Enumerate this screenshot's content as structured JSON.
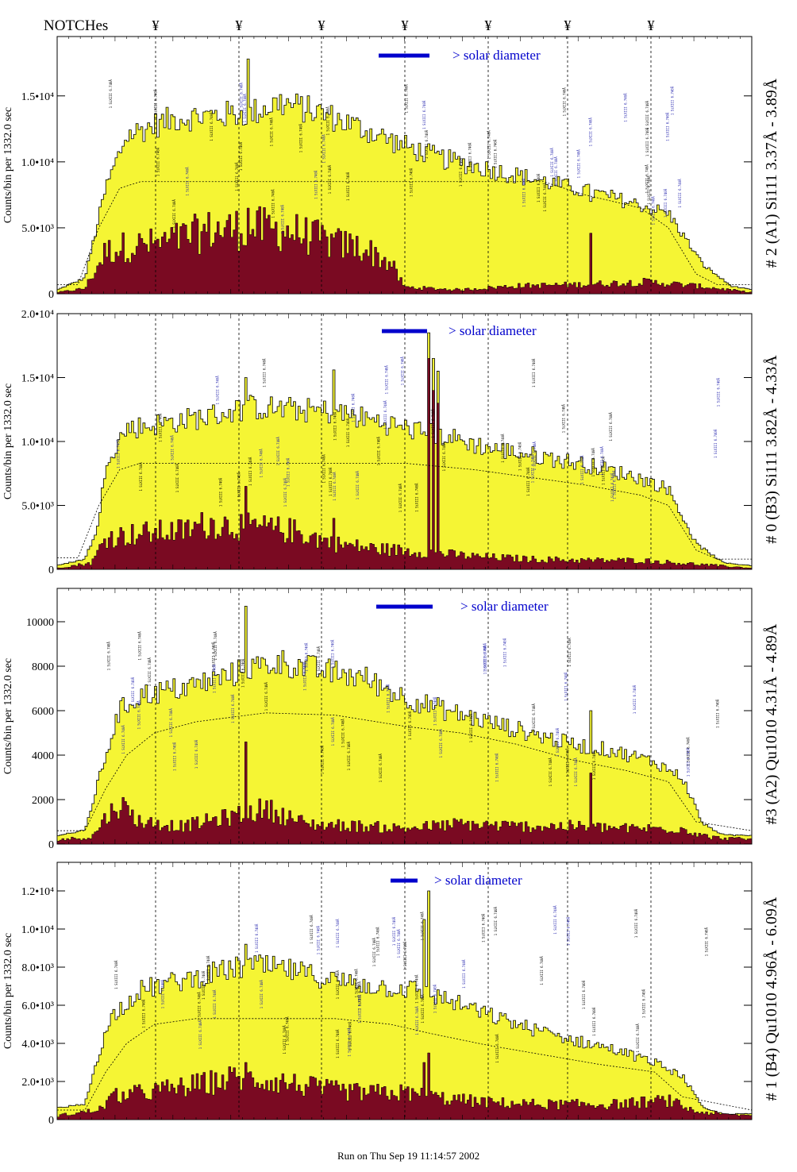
{
  "header": {
    "notches_label": "NOTCHes",
    "notch_symbol": "¥"
  },
  "footer": {
    "run_text": "Run on Thu Sep 19 11:14:57 2002"
  },
  "colors": {
    "total": "#f5f534",
    "background": "#7a0a22",
    "solar_bar": "#0000cc",
    "annotation_black": "#000000",
    "annotation_blue": "#1a1aaa"
  },
  "chart_data": [
    {
      "type": "bar",
      "ylabel": "Counts/bin per   1332.0 sec",
      "side_label": "# 2 (A1) Si111  3.37Å - 3.89Å",
      "ylim": [
        0,
        19500
      ],
      "yticks": [
        0,
        5000,
        10000,
        15000
      ],
      "ytick_labels": [
        "0",
        "5.0•10³",
        "1.0•10⁴",
        "1.5•10⁴"
      ],
      "solar_diameter_label": "> solar diameter",
      "total_profile": [
        [
          0,
          300
        ],
        [
          4,
          1200
        ],
        [
          7,
          8000
        ],
        [
          10,
          12000
        ],
        [
          13,
          12600
        ],
        [
          17,
          13300
        ],
        [
          22,
          13500
        ],
        [
          28,
          13700
        ],
        [
          32,
          14500
        ],
        [
          38,
          13700
        ],
        [
          45,
          12300
        ],
        [
          50,
          11200
        ],
        [
          55,
          10300
        ],
        [
          60,
          9700
        ],
        [
          66,
          9000
        ],
        [
          72,
          8300
        ],
        [
          80,
          7300
        ],
        [
          88,
          6100
        ],
        [
          93,
          2200
        ],
        [
          97,
          600
        ],
        [
          100,
          300
        ]
      ],
      "background_profile": [
        [
          0,
          100
        ],
        [
          4,
          400
        ],
        [
          7,
          3200
        ],
        [
          10,
          3600
        ],
        [
          15,
          3800
        ],
        [
          22,
          4800
        ],
        [
          28,
          5000
        ],
        [
          34,
          4700
        ],
        [
          40,
          3800
        ],
        [
          44,
          3500
        ],
        [
          48,
          2300
        ],
        [
          50,
          500
        ],
        [
          58,
          300
        ],
        [
          66,
          600
        ],
        [
          75,
          700
        ],
        [
          85,
          900
        ],
        [
          92,
          600
        ],
        [
          100,
          100
        ]
      ],
      "model_profile": [
        [
          0,
          700
        ],
        [
          3,
          700
        ],
        [
          6,
          5000
        ],
        [
          9,
          8000
        ],
        [
          12,
          8500
        ],
        [
          70,
          8500
        ],
        [
          76,
          7500
        ],
        [
          84,
          6500
        ],
        [
          88,
          5000
        ],
        [
          92,
          1500
        ],
        [
          95,
          700
        ],
        [
          100,
          700
        ]
      ],
      "spikes": [
        {
          "x": 27.2,
          "total": 17800,
          "background": 6500
        },
        {
          "x": 76.8,
          "total": 7000,
          "background": 4600
        }
      ]
    },
    {
      "type": "bar",
      "ylabel": "Counts/bin per   1332.0 sec",
      "side_label": "# 0 (B3) Si111  3.82Å - 4.33Å",
      "ylim": [
        0,
        20000
      ],
      "yticks": [
        0,
        5000,
        10000,
        15000,
        20000
      ],
      "ytick_labels": [
        "0",
        "5.0•10³",
        "1.0•10⁴",
        "1.5•10⁴",
        "2.0•10⁴"
      ],
      "solar_diameter_label": "> solar diameter",
      "total_profile": [
        [
          0,
          300
        ],
        [
          4,
          800
        ],
        [
          6,
          3500
        ],
        [
          7,
          8500
        ],
        [
          10,
          11000
        ],
        [
          15,
          11400
        ],
        [
          22,
          12000
        ],
        [
          28,
          12700
        ],
        [
          34,
          12500
        ],
        [
          40,
          12300
        ],
        [
          46,
          11600
        ],
        [
          52,
          10800
        ],
        [
          56,
          10400
        ],
        [
          62,
          9500
        ],
        [
          70,
          8800
        ],
        [
          76,
          8200
        ],
        [
          83,
          7300
        ],
        [
          88,
          6300
        ],
        [
          92,
          2000
        ],
        [
          96,
          500
        ],
        [
          100,
          300
        ]
      ],
      "background_profile": [
        [
          0,
          100
        ],
        [
          5,
          500
        ],
        [
          7,
          2500
        ],
        [
          12,
          2800
        ],
        [
          18,
          3000
        ],
        [
          22,
          3600
        ],
        [
          28,
          3300
        ],
        [
          34,
          3000
        ],
        [
          40,
          2000
        ],
        [
          46,
          1600
        ],
        [
          52,
          1400
        ],
        [
          60,
          1000
        ],
        [
          68,
          800
        ],
        [
          76,
          700
        ],
        [
          84,
          700
        ],
        [
          92,
          400
        ],
        [
          100,
          100
        ]
      ],
      "model_profile": [
        [
          0,
          900
        ],
        [
          3,
          900
        ],
        [
          6,
          5000
        ],
        [
          9,
          7800
        ],
        [
          12,
          8300
        ],
        [
          50,
          8300
        ],
        [
          60,
          7800
        ],
        [
          68,
          7200
        ],
        [
          76,
          6600
        ],
        [
          84,
          5800
        ],
        [
          88,
          5000
        ],
        [
          92,
          1500
        ],
        [
          95,
          800
        ],
        [
          100,
          800
        ]
      ],
      "spikes": [
        {
          "x": 27.0,
          "total": 15000,
          "background": 6500
        },
        {
          "x": 53.3,
          "total": 18500,
          "background": 16500
        },
        {
          "x": 54.0,
          "total": 16500,
          "background": 14000
        },
        {
          "x": 54.7,
          "total": 15500,
          "background": 13000
        },
        {
          "x": 39.8,
          "total": 15600,
          "background": 4000
        }
      ]
    },
    {
      "type": "bar",
      "ylabel": "Counts/bin per   1332.0 sec",
      "side_label": "#3 (A2) Qu1010  4.31Å - 4.89Å",
      "ylim": [
        0,
        11500
      ],
      "yticks": [
        0,
        2000,
        4000,
        6000,
        8000,
        10000
      ],
      "ytick_labels": [
        "0",
        "2000",
        "4000",
        "6000",
        "8000",
        "10000"
      ],
      "solar_diameter_label": "> solar diameter",
      "total_profile": [
        [
          0,
          400
        ],
        [
          4,
          600
        ],
        [
          7,
          4000
        ],
        [
          9,
          6000
        ],
        [
          12,
          6700
        ],
        [
          18,
          7000
        ],
        [
          24,
          7500
        ],
        [
          28,
          7900
        ],
        [
          32,
          8200
        ],
        [
          38,
          7800
        ],
        [
          44,
          7500
        ],
        [
          50,
          6600
        ],
        [
          56,
          6000
        ],
        [
          62,
          5500
        ],
        [
          68,
          5000
        ],
        [
          74,
          4500
        ],
        [
          80,
          4200
        ],
        [
          86,
          3700
        ],
        [
          90,
          3000
        ],
        [
          93,
          900
        ],
        [
          96,
          400
        ],
        [
          100,
          400
        ]
      ],
      "background_profile": [
        [
          0,
          200
        ],
        [
          5,
          300
        ],
        [
          7,
          1200
        ],
        [
          9,
          1800
        ],
        [
          12,
          1000
        ],
        [
          18,
          800
        ],
        [
          26,
          1300
        ],
        [
          30,
          1600
        ],
        [
          36,
          900
        ],
        [
          44,
          800
        ],
        [
          50,
          700
        ],
        [
          58,
          900
        ],
        [
          66,
          800
        ],
        [
          74,
          800
        ],
        [
          82,
          700
        ],
        [
          90,
          700
        ],
        [
          94,
          300
        ],
        [
          100,
          200
        ]
      ],
      "model_profile": [
        [
          0,
          600
        ],
        [
          4,
          600
        ],
        [
          7,
          2500
        ],
        [
          10,
          4000
        ],
        [
          14,
          5000
        ],
        [
          20,
          5500
        ],
        [
          30,
          5900
        ],
        [
          40,
          5800
        ],
        [
          50,
          5300
        ],
        [
          58,
          5000
        ],
        [
          66,
          4500
        ],
        [
          74,
          3800
        ],
        [
          82,
          3300
        ],
        [
          88,
          2800
        ],
        [
          92,
          1000
        ],
        [
          100,
          600
        ]
      ],
      "spikes": [
        {
          "x": 27.0,
          "total": 10700,
          "background": 4600
        },
        {
          "x": 76.8,
          "total": 6000,
          "background": 3200
        }
      ]
    },
    {
      "type": "bar",
      "ylabel": "Counts/bin per   1332.0 sec",
      "side_label": "# 1 (B4) Qu1010 4.96Å - 6.09Å",
      "ylim": [
        0,
        13500
      ],
      "yticks": [
        0,
        2000,
        4000,
        6000,
        8000,
        10000,
        12000
      ],
      "ytick_labels": [
        "0",
        "2.0•10³",
        "4.0•10³",
        "6.0•10³",
        "8.0•10³",
        "1.0•10⁴",
        "1.2•10⁴"
      ],
      "solar_diameter_label": "> solar diameter",
      "total_profile": [
        [
          0,
          600
        ],
        [
          4,
          800
        ],
        [
          6,
          3500
        ],
        [
          8,
          5500
        ],
        [
          12,
          6800
        ],
        [
          18,
          7300
        ],
        [
          24,
          7800
        ],
        [
          28,
          8100
        ],
        [
          34,
          7800
        ],
        [
          40,
          7300
        ],
        [
          46,
          7000
        ],
        [
          52,
          6800
        ],
        [
          56,
          6300
        ],
        [
          62,
          5500
        ],
        [
          68,
          4800
        ],
        [
          74,
          4200
        ],
        [
          80,
          3700
        ],
        [
          86,
          3000
        ],
        [
          90,
          2300
        ],
        [
          93,
          600
        ],
        [
          96,
          300
        ],
        [
          100,
          300
        ]
      ],
      "background_profile": [
        [
          0,
          200
        ],
        [
          6,
          500
        ],
        [
          8,
          1200
        ],
        [
          14,
          1500
        ],
        [
          20,
          1800
        ],
        [
          26,
          2200
        ],
        [
          32,
          2000
        ],
        [
          38,
          1600
        ],
        [
          44,
          1400
        ],
        [
          50,
          1400
        ],
        [
          56,
          1100
        ],
        [
          62,
          900
        ],
        [
          70,
          800
        ],
        [
          80,
          800
        ],
        [
          88,
          1000
        ],
        [
          92,
          400
        ],
        [
          100,
          200
        ]
      ],
      "model_profile": [
        [
          0,
          500
        ],
        [
          4,
          500
        ],
        [
          7,
          2500
        ],
        [
          10,
          4000
        ],
        [
          14,
          5000
        ],
        [
          20,
          5300
        ],
        [
          30,
          5300
        ],
        [
          40,
          5300
        ],
        [
          48,
          5000
        ],
        [
          54,
          4500
        ],
        [
          62,
          3900
        ],
        [
          70,
          3400
        ],
        [
          78,
          2900
        ],
        [
          86,
          2500
        ],
        [
          90,
          1200
        ],
        [
          100,
          500
        ]
      ],
      "spikes": [
        {
          "x": 53.3,
          "total": 12000,
          "background": 3500
        },
        {
          "x": 52.6,
          "total": 10500,
          "background": 3000
        },
        {
          "x": 27.0,
          "total": 9200,
          "background": 3000
        }
      ]
    }
  ]
}
